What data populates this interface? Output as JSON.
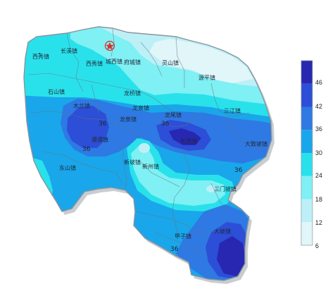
{
  "colors": {
    "background": "#ffffff",
    "border": "#8a949e",
    "district_lines": "#6a7480",
    "shadow": "#c8cdd2",
    "star": "#d8322a"
  },
  "legend": {
    "ticks": [
      "46",
      "42",
      "36",
      "30",
      "24",
      "18",
      "12",
      "6"
    ],
    "bands": [
      {
        "from": 6,
        "to": 12,
        "color": "#e1f6f9"
      },
      {
        "from": 12,
        "to": 18,
        "color": "#bdf0f6"
      },
      {
        "from": 18,
        "to": 24,
        "color": "#7ff0f4"
      },
      {
        "from": 24,
        "to": 30,
        "color": "#29e1eb"
      },
      {
        "from": 30,
        "to": 36,
        "color": "#1aa6ea"
      },
      {
        "from": 36,
        "to": 42,
        "color": "#2e79e3"
      },
      {
        "from": 42,
        "to": 46,
        "color": "#2d4ed6"
      },
      {
        "from": 46,
        "to": 50,
        "color": "#2727b2"
      }
    ]
  },
  "contour_labels": [
    "36",
    "36",
    "36",
    "36",
    "36"
  ],
  "towns": [
    "西秀镇",
    "长溪镇",
    "西秀镇",
    "城西镇",
    "府城镇",
    "灵山镇",
    "源平镇",
    "石山镇",
    "龙桥镇",
    "木兰镇",
    "龙泉镇",
    "龙泉镇",
    "龙尾镇",
    "三江镇",
    "长流镇",
    "大致坡镇",
    "遵谭镇",
    "新坡镇",
    "新州镇",
    "东山镇",
    "三门坡镇",
    "甲子镇",
    "大坡镇"
  ],
  "marker_icon": "star-icon"
}
